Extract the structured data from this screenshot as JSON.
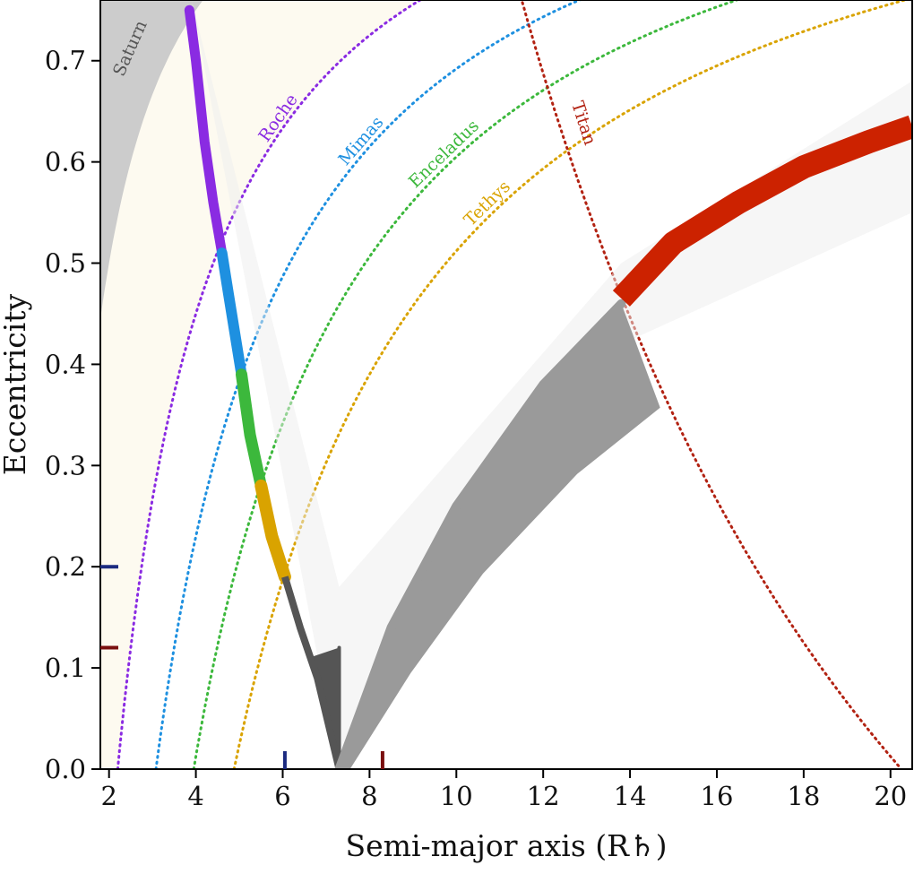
{
  "chart_data": {
    "type": "scatter",
    "title": "",
    "xlabel": "Semi-major axis (R♄)",
    "ylabel": "Eccentricity",
    "xlim": [
      1.8,
      20.5
    ],
    "ylim": [
      0.0,
      0.76
    ],
    "xticks": [
      2,
      4,
      6,
      8,
      10,
      12,
      14,
      16,
      18,
      20
    ],
    "yticks": [
      0.0,
      0.1,
      0.2,
      0.3,
      0.4,
      0.5,
      0.6,
      0.7
    ],
    "xtick_labels": [
      "2",
      "4",
      "6",
      "8",
      "10",
      "12",
      "14",
      "16",
      "18",
      "20"
    ],
    "ytick_labels": [
      "0.0",
      "0.1",
      "0.2",
      "0.3",
      "0.4",
      "0.5",
      "0.6",
      "0.7"
    ],
    "grid": false,
    "legend": "none",
    "regions": [
      {
        "name": "Saturn",
        "color": "#cccccc",
        "pericenter": 1.0
      },
      {
        "name": "roche-zone",
        "color": "#fdfaf0",
        "pericenter": 2.2
      }
    ],
    "pericenter_curves": [
      {
        "name": "Roche",
        "pericenter": 2.2,
        "color": "#8a2be2",
        "label_at_x": 6.0
      },
      {
        "name": "Mimas",
        "pericenter": 3.08,
        "color": "#1e90e0",
        "label_at_x": 7.9
      },
      {
        "name": "Enceladus",
        "pericenter": 3.95,
        "color": "#3cb83c",
        "label_at_x": 9.8
      },
      {
        "name": "Tethys",
        "pericenter": 4.88,
        "color": "#d9a300",
        "label_at_x": 10.8
      }
    ],
    "apocenter_curves": [
      {
        "name": "Titan",
        "apocenter": 20.25,
        "color": "#b22212",
        "label_at_x": 12.4
      }
    ],
    "scatter_branches": [
      {
        "name": "inner-purple",
        "color": "#8a2be2",
        "x": [
          3.85,
          4.0,
          4.2,
          4.4,
          4.6
        ],
        "y": [
          0.75,
          0.7,
          0.62,
          0.56,
          0.51
        ]
      },
      {
        "name": "inner-blue",
        "color": "#1e90e0",
        "x": [
          4.6,
          4.75,
          4.9,
          5.05
        ],
        "y": [
          0.51,
          0.47,
          0.43,
          0.39
        ]
      },
      {
        "name": "inner-green",
        "color": "#3cb83c",
        "x": [
          5.05,
          5.25,
          5.5
        ],
        "y": [
          0.39,
          0.33,
          0.28
        ]
      },
      {
        "name": "inner-yellow",
        "color": "#d9a300",
        "x": [
          5.5,
          5.75,
          6.05
        ],
        "y": [
          0.28,
          0.23,
          0.19
        ]
      },
      {
        "name": "inner-dark",
        "color": "#555555",
        "x": [
          6.05,
          6.4,
          6.8,
          7.3
        ],
        "y": [
          0.19,
          0.14,
          0.09,
          0.0
        ]
      },
      {
        "name": "outer-dark",
        "color": "#555555",
        "x": [
          7.3,
          7.3
        ],
        "y": [
          0.0,
          0.12
        ]
      },
      {
        "name": "outer-gray",
        "color": "#9a9a9a",
        "x": [
          7.3,
          8.5,
          10.0,
          12.0,
          13.8
        ],
        "y": [
          0.0,
          0.14,
          0.26,
          0.38,
          0.46
        ]
      },
      {
        "name": "outer-red",
        "color": "#cc2200",
        "x": [
          13.8,
          15.0,
          16.5,
          18.0,
          19.5,
          20.5
        ],
        "y": [
          0.465,
          0.52,
          0.56,
          0.595,
          0.62,
          0.635
        ]
      }
    ],
    "markers": {
      "x_axis": [
        {
          "x": 6.05,
          "color": "#1b2a80"
        },
        {
          "x": 8.3,
          "color": "#7a0f0f"
        }
      ],
      "y_axis": [
        {
          "y": 0.2,
          "color": "#1b2a80"
        },
        {
          "y": 0.12,
          "color": "#7a0f0f"
        }
      ]
    }
  }
}
